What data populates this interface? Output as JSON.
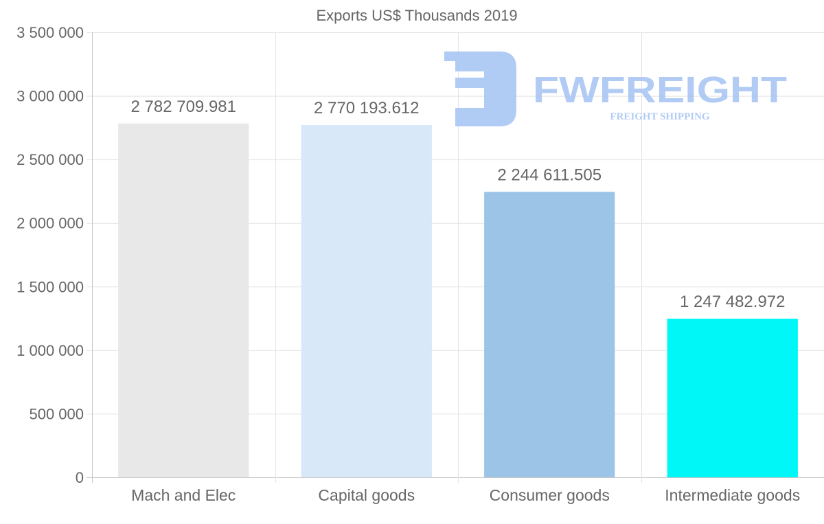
{
  "chart_data": {
    "type": "bar",
    "title": "Exports US$ Thousands 2019",
    "xlabel": "",
    "ylabel": "",
    "categories": [
      "Mach and Elec",
      "Capital goods",
      "Consumer goods",
      "Intermediate goods"
    ],
    "values": [
      2782709.981,
      2770193.612,
      2244611.505,
      1247482.972
    ],
    "value_labels": [
      "2 782 709.981",
      "2 770 193.612",
      "2 244 611.505",
      "1 247 482.972"
    ],
    "colors": [
      "#e8e8e8",
      "#d8e8f8",
      "#9cc4e6",
      "#00f7f7"
    ],
    "ylim": [
      0,
      3500000
    ],
    "yticks": [
      0,
      500000,
      1000000,
      1500000,
      2000000,
      2500000,
      3000000,
      3500000
    ],
    "ytick_labels": [
      "0",
      "500 000",
      "1 000 000",
      "1 500 000",
      "2 000 000",
      "2 500 000",
      "3 000 000",
      "3 500 000"
    ],
    "grid": true,
    "legend": "none"
  },
  "watermark": {
    "brand": "FWFREIGHT",
    "tagline": "FREIGHT SHIPPING",
    "color": "#a9c6f3"
  }
}
